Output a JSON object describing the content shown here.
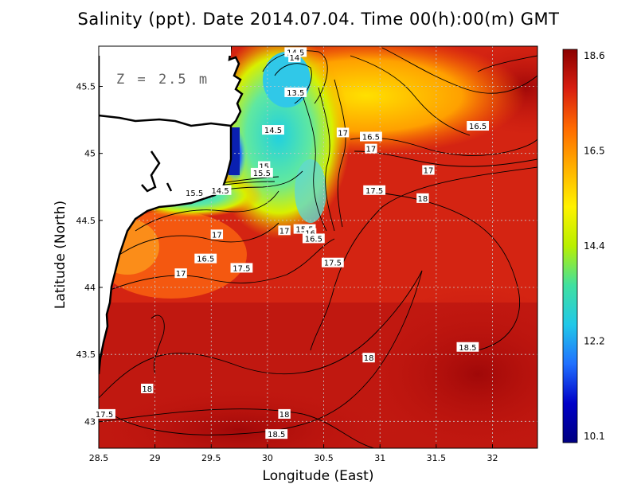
{
  "title": "Salinity (ppt). Date 2014.07.04. Time 00(h):00(m) GMT",
  "depth_label": "Z = 2.5 m",
  "xlabel": "Longitude (East)",
  "ylabel": "Latitude (North)",
  "colors": {
    "sea_high": "#a80a0a",
    "sea_mid": "#e8401c",
    "land": "#ffffff",
    "coast": "#000000",
    "grid": "#bfbfbf"
  },
  "chart_data": {
    "type": "heatmap",
    "variable": "Salinity (ppt)",
    "xlim": [
      28.5,
      32.4
    ],
    "ylim": [
      42.8,
      45.8
    ],
    "xticks": [
      "28.5",
      "29",
      "29.5",
      "30",
      "30.5",
      "31",
      "31.5",
      "32"
    ],
    "yticks": [
      "43",
      "43.5",
      "44",
      "44.5",
      "45",
      "45.5"
    ],
    "colorbar": {
      "min": 10.1,
      "max": 18.6,
      "tick_labels": [
        "18.6",
        "16.5",
        "14.4",
        "12.2",
        "10.1"
      ],
      "stops": [
        "#8b0000",
        "#d81e10",
        "#ff6a00",
        "#ffb000",
        "#fff200",
        "#b8f000",
        "#40e0a0",
        "#20c8e8",
        "#2070ff",
        "#0000c8",
        "#000080"
      ]
    },
    "contour_labels": [
      {
        "text": "14.5",
        "lon": 30.25,
        "lat": 45.75
      },
      {
        "text": "14",
        "lon": 30.24,
        "lat": 45.71
      },
      {
        "text": "13.5",
        "lon": 30.25,
        "lat": 45.45
      },
      {
        "text": "14.5",
        "lon": 30.05,
        "lat": 45.17
      },
      {
        "text": "15",
        "lon": 29.97,
        "lat": 44.9
      },
      {
        "text": "15.5",
        "lon": 29.95,
        "lat": 44.85
      },
      {
        "text": "15.5",
        "lon": 29.35,
        "lat": 44.7
      },
      {
        "text": "14.5",
        "lon": 29.58,
        "lat": 44.72
      },
      {
        "text": "17",
        "lon": 30.67,
        "lat": 45.15
      },
      {
        "text": "16.5",
        "lon": 30.92,
        "lat": 45.12
      },
      {
        "text": "17",
        "lon": 30.92,
        "lat": 45.03
      },
      {
        "text": "16.5",
        "lon": 31.87,
        "lat": 45.2
      },
      {
        "text": "17",
        "lon": 31.43,
        "lat": 44.87
      },
      {
        "text": "17.5",
        "lon": 30.95,
        "lat": 44.72
      },
      {
        "text": "18",
        "lon": 31.38,
        "lat": 44.66
      },
      {
        "text": "17",
        "lon": 30.15,
        "lat": 44.42
      },
      {
        "text": "15.5",
        "lon": 30.33,
        "lat": 44.43
      },
      {
        "text": "16",
        "lon": 30.38,
        "lat": 44.4
      },
      {
        "text": "16.5",
        "lon": 30.41,
        "lat": 44.36
      },
      {
        "text": "17",
        "lon": 29.55,
        "lat": 44.39
      },
      {
        "text": "16.5",
        "lon": 29.45,
        "lat": 44.21
      },
      {
        "text": "17.5",
        "lon": 29.77,
        "lat": 44.14
      },
      {
        "text": "17",
        "lon": 29.23,
        "lat": 44.1
      },
      {
        "text": "17.5",
        "lon": 30.58,
        "lat": 44.18
      },
      {
        "text": "18",
        "lon": 30.9,
        "lat": 43.47
      },
      {
        "text": "18.5",
        "lon": 31.78,
        "lat": 43.55
      },
      {
        "text": "18",
        "lon": 28.93,
        "lat": 43.24
      },
      {
        "text": "17.5",
        "lon": 28.55,
        "lat": 43.05
      },
      {
        "text": "18",
        "lon": 30.15,
        "lat": 43.05
      },
      {
        "text": "18.5",
        "lon": 30.08,
        "lat": 42.9
      }
    ]
  }
}
